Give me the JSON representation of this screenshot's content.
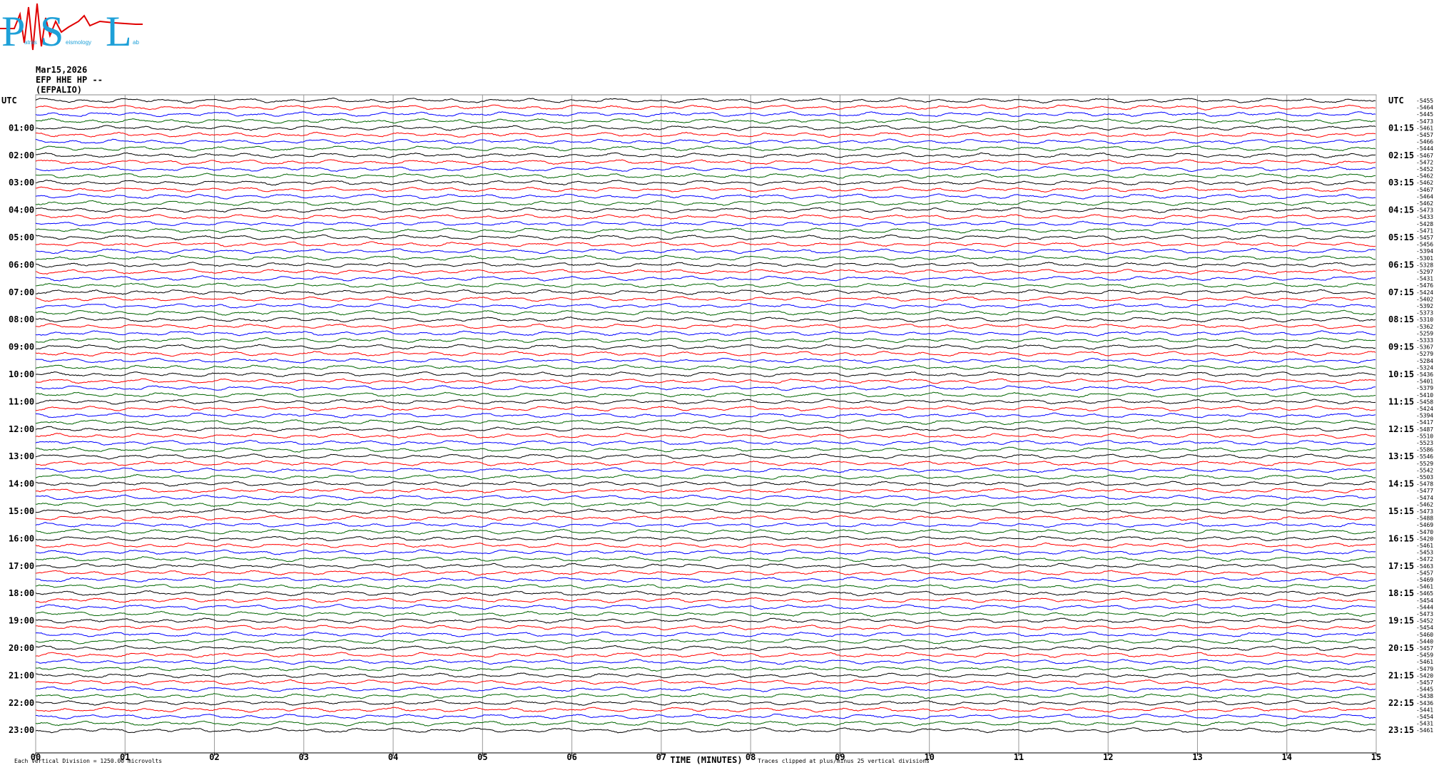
{
  "chart_data": {
    "type": "helicorder",
    "logo": {
      "p": "P",
      "p_rest": "atras",
      "s": "S",
      "s_rest": "eismology",
      "l": "L",
      "l_rest": "ab"
    },
    "date": "Mar15,2026",
    "station": "EFP HHE HP --",
    "site": "(EFPALIO)",
    "left_labels": [
      "UTC",
      "01:00",
      "02:00",
      "03:00",
      "04:00",
      "05:00",
      "06:00",
      "07:00",
      "08:00",
      "09:00",
      "10:00",
      "11:00",
      "12:00",
      "13:00",
      "14:00",
      "15:00",
      "16:00",
      "17:00",
      "18:00",
      "19:00",
      "20:00",
      "21:00",
      "22:00",
      "23:00"
    ],
    "right_labels": [
      "UTC",
      "01:15",
      "02:15",
      "03:15",
      "04:15",
      "05:15",
      "06:15",
      "07:15",
      "08:15",
      "09:15",
      "10:15",
      "11:15",
      "12:15",
      "13:15",
      "14:15",
      "15:15",
      "16:15",
      "17:15",
      "18:15",
      "19:15",
      "20:15",
      "21:15",
      "22:15",
      "23:15"
    ],
    "trace_offsets": [
      -5455,
      -5464,
      -5445,
      -5473,
      -5461,
      -5457,
      -5466,
      -5444,
      -5467,
      -5472,
      -5452,
      -5462,
      -5462,
      -5467,
      -5464,
      -5462,
      -5473,
      -5433,
      -5428,
      -5471,
      -5457,
      -5456,
      -5394,
      -5301,
      -5328,
      -5297,
      -5431,
      -5476,
      -5424,
      -5402,
      -5392,
      -5373,
      -5310,
      -5362,
      -5259,
      -5333,
      -5367,
      -5279,
      -5284,
      -5324,
      -5436,
      -5401,
      -5379,
      -5410,
      -5458,
      -5424,
      -5394,
      -5417,
      -5487,
      -5510,
      -5523,
      -5586,
      -5546,
      -5529,
      -5542,
      -5503,
      -5478,
      -5477,
      -5474,
      -5462,
      -5473,
      -5488,
      -5469,
      -5470,
      -5420,
      -5461,
      -5453,
      -5472,
      -5463,
      -5457,
      -5469,
      -5461,
      -5465,
      -5454,
      -5444,
      -5473,
      -5452,
      -5454,
      -5460,
      -5440,
      -5457,
      -5459,
      -5461,
      -5479,
      -5420,
      -5457,
      -5445,
      -5438,
      -5436,
      -5441,
      -5454,
      -5431,
      -5461
    ],
    "colors": [
      "#000000",
      "#ff0000",
      "#0000ff",
      "#006400"
    ],
    "xlim": [
      0,
      15
    ],
    "xticks": [
      {
        "value": 0,
        "label": "00"
      },
      {
        "value": 1,
        "label": "01"
      },
      {
        "value": 2,
        "label": "02"
      },
      {
        "value": 3,
        "label": "03"
      },
      {
        "value": 4,
        "label": "04"
      },
      {
        "value": 5,
        "label": "05"
      },
      {
        "value": 6,
        "label": "06"
      },
      {
        "value": 7,
        "label": "07"
      },
      {
        "value": 8,
        "label": "08"
      },
      {
        "value": 9,
        "label": "09"
      },
      10,
      11,
      12,
      13,
      14,
      15
    ],
    "xlabel": "TIME (MINUTES)",
    "scale_note": "Each Vertical Division = 1250.00 microvolts",
    "clip_note": "Traces clipped at plus/minus 25 vertical divisions"
  }
}
